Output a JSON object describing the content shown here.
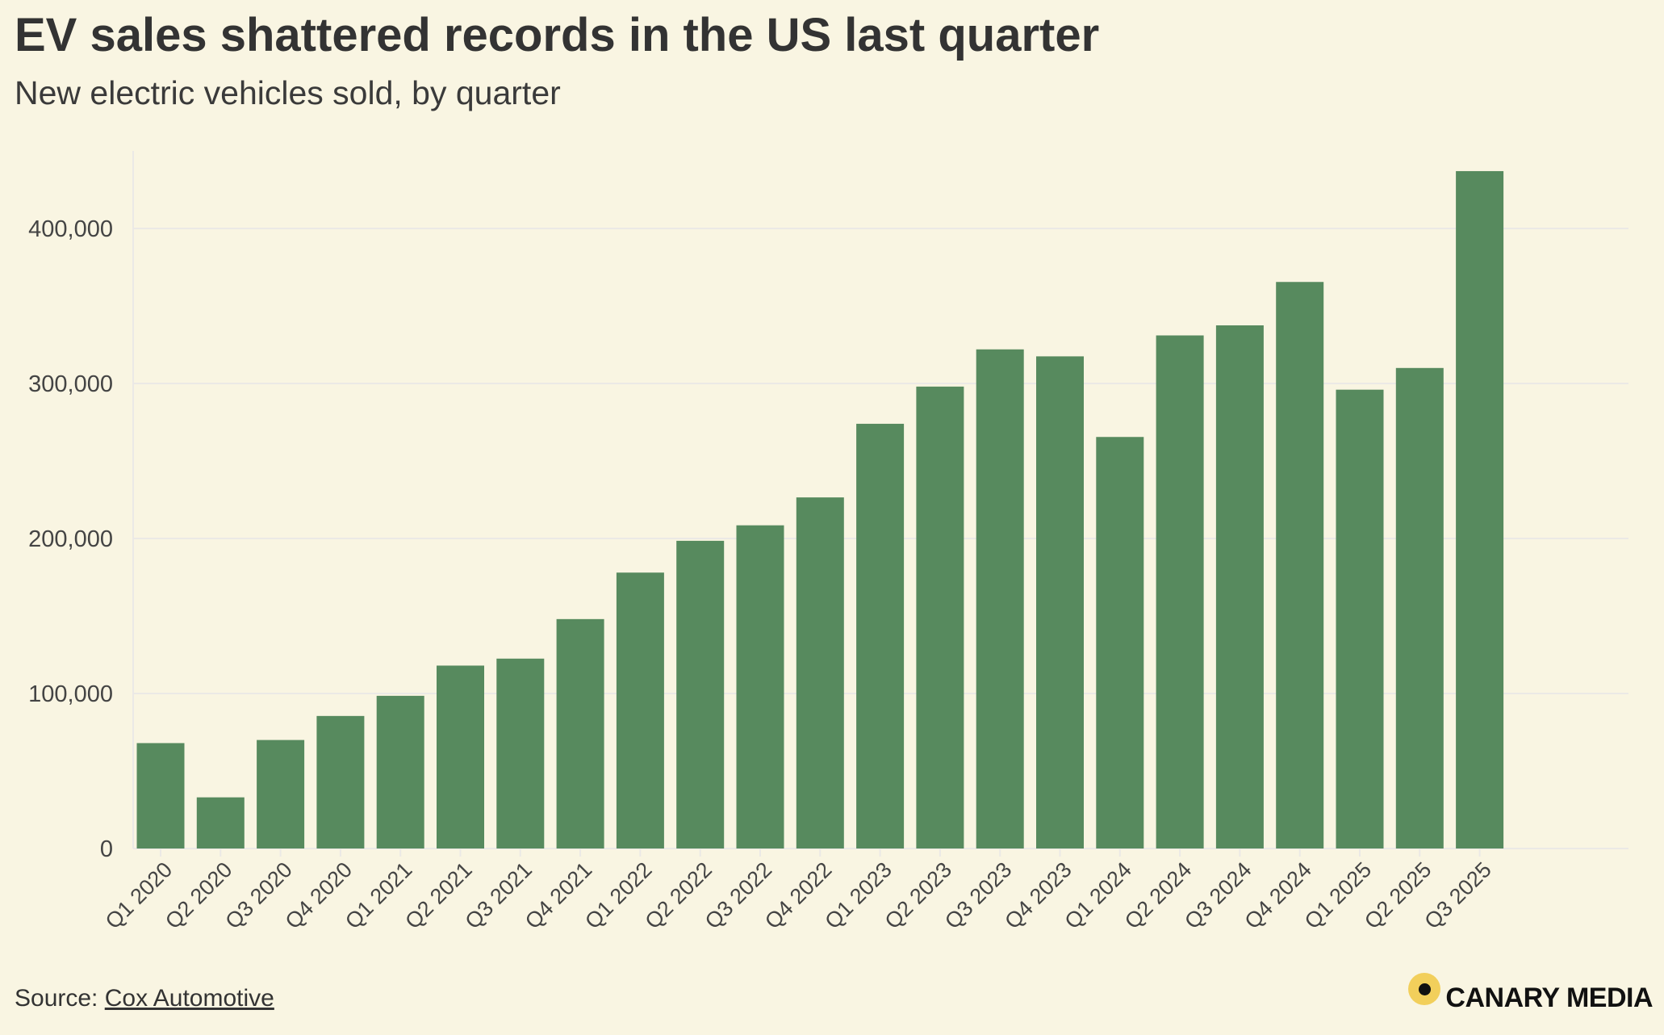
{
  "title": "EV sales shattered records in the US last quarter",
  "subtitle": "New electric vehicles sold, by quarter",
  "source": {
    "prefix": "Source: ",
    "link_text": "Cox Automotive"
  },
  "brand": {
    "name": "CANARY MEDIA",
    "logo_color": "#f2cf5b",
    "dot_color": "#111111"
  },
  "colors": {
    "background": "#f9f5e2",
    "bar": "#578a5e",
    "gridline": "#ebe9e6",
    "text": "#333333"
  },
  "chart_data": {
    "type": "bar",
    "title": "EV sales shattered records in the US last quarter",
    "subtitle": "New electric vehicles sold, by quarter",
    "xlabel": "",
    "ylabel": "",
    "ylim": [
      0,
      450000
    ],
    "yticks": [
      0,
      100000,
      200000,
      300000,
      400000
    ],
    "ytick_labels": [
      "0",
      "100,000",
      "200,000",
      "300,000",
      "400,000"
    ],
    "grid": true,
    "categories": [
      "Q1 2020",
      "Q2 2020",
      "Q3 2020",
      "Q4 2020",
      "Q1 2021",
      "Q2 2021",
      "Q3 2021",
      "Q4 2021",
      "Q1 2022",
      "Q2 2022",
      "Q3 2022",
      "Q4 2022",
      "Q1 2023",
      "Q2 2023",
      "Q3 2023",
      "Q4 2023",
      "Q1 2024",
      "Q2 2024",
      "Q3 2024",
      "Q4 2024",
      "Q1 2025",
      "Q2 2025",
      "Q3 2025"
    ],
    "values": [
      68000,
      33000,
      70000,
      85500,
      98500,
      118000,
      122500,
      148000,
      178000,
      198500,
      208500,
      226500,
      274000,
      298000,
      322000,
      317500,
      265500,
      331000,
      337500,
      365500,
      296000,
      310000,
      437000
    ]
  }
}
